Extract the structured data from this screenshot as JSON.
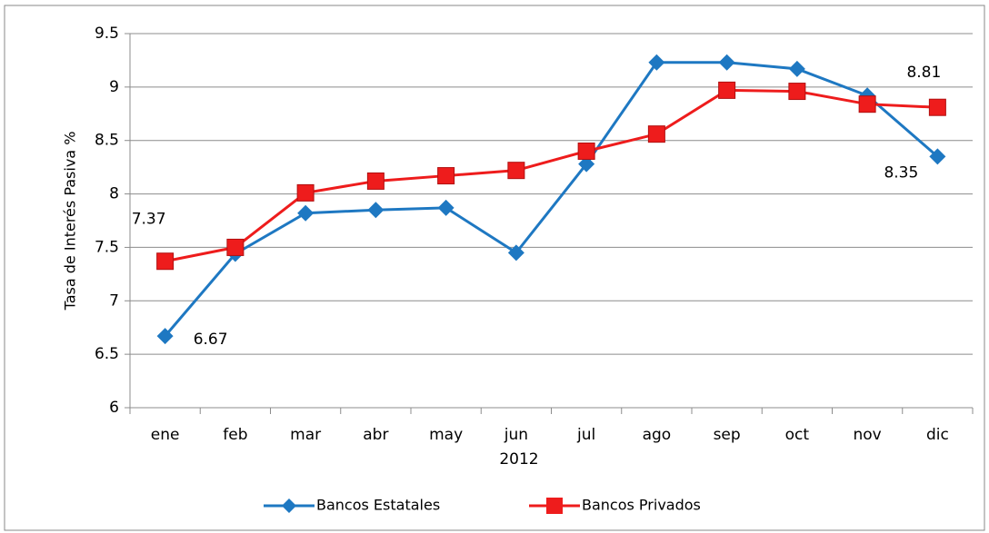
{
  "chart_data": {
    "type": "line",
    "categories": [
      "ene",
      "feb",
      "mar",
      "abr",
      "may",
      "jun",
      "jul",
      "ago",
      "sep",
      "oct",
      "nov",
      "dic"
    ],
    "x_label": "2012",
    "y_label": "Tasa de Interés Pasiva %",
    "ylim": [
      6,
      9.5
    ],
    "yticks": [
      6,
      6.5,
      7,
      7.5,
      8,
      8.5,
      9,
      9.5
    ],
    "grid": true,
    "legend": "bottom",
    "series": [
      {
        "name": "Bancos Estatales",
        "color": "#1e78c2",
        "marker": "diamond",
        "values": [
          6.67,
          7.44,
          7.82,
          7.85,
          7.87,
          7.45,
          8.28,
          9.23,
          9.23,
          9.17,
          8.92,
          8.35
        ],
        "value_labels": [
          "6.67",
          null,
          null,
          null,
          null,
          null,
          null,
          null,
          null,
          null,
          null,
          "8.35"
        ]
      },
      {
        "name": "Bancos Privados",
        "color": "#ee1c1c",
        "marker": "square",
        "values": [
          7.37,
          7.5,
          8.01,
          8.12,
          8.17,
          8.22,
          8.4,
          8.56,
          8.97,
          8.96,
          8.84,
          8.81
        ],
        "value_labels": [
          "7.37",
          null,
          null,
          null,
          null,
          null,
          null,
          null,
          null,
          null,
          null,
          "8.81"
        ]
      }
    ]
  }
}
